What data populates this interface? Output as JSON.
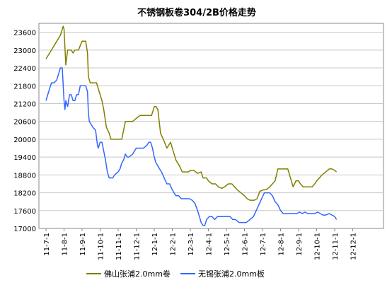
{
  "chart_data": {
    "type": "line",
    "title": "不锈钢板卷304/2B价格走势",
    "xlabel": "",
    "ylabel": "",
    "ylim": [
      17000,
      23900
    ],
    "y_ticks": [
      17000,
      17600,
      18200,
      18800,
      19400,
      20000,
      20600,
      21200,
      21800,
      22400,
      23000,
      23600
    ],
    "grid": true,
    "legend_position": "bottom",
    "categories": [
      "11-7-1",
      "11-8-1",
      "11-9-1",
      "11-10-1",
      "11-11-1",
      "11-12-1",
      "12-1-1",
      "12-2-1",
      "12-3-1",
      "12-4-1",
      "12-5-1",
      "12-6-1",
      "12-7-1",
      "12-8-1",
      "12-9-1",
      "12-10-1",
      "12-11-1",
      "12-12-1"
    ],
    "series": [
      {
        "name": "佛山张浦2.0mm卷",
        "color": "#808000",
        "points": [
          [
            0,
            22700
          ],
          [
            0.2,
            22900
          ],
          [
            0.4,
            23100
          ],
          [
            0.6,
            23300
          ],
          [
            0.8,
            23500
          ],
          [
            0.9,
            23700
          ],
          [
            0.95,
            23800
          ],
          [
            1.0,
            23700
          ],
          [
            1.1,
            22500
          ],
          [
            1.2,
            23000
          ],
          [
            1.4,
            23000
          ],
          [
            1.5,
            22900
          ],
          [
            1.6,
            23000
          ],
          [
            1.8,
            23000
          ],
          [
            2.0,
            23300
          ],
          [
            2.2,
            23300
          ],
          [
            2.3,
            22900
          ],
          [
            2.35,
            22100
          ],
          [
            2.45,
            21900
          ],
          [
            2.6,
            21900
          ],
          [
            2.8,
            21900
          ],
          [
            3.0,
            21500
          ],
          [
            3.1,
            21300
          ],
          [
            3.2,
            21000
          ],
          [
            3.35,
            20400
          ],
          [
            3.5,
            20200
          ],
          [
            3.6,
            20000
          ],
          [
            3.8,
            20000
          ],
          [
            4.0,
            20000
          ],
          [
            4.2,
            20000
          ],
          [
            4.4,
            20600
          ],
          [
            4.6,
            20600
          ],
          [
            4.8,
            20600
          ],
          [
            5.0,
            20700
          ],
          [
            5.2,
            20800
          ],
          [
            5.5,
            20800
          ],
          [
            5.7,
            20800
          ],
          [
            5.85,
            20800
          ],
          [
            6.0,
            21100
          ],
          [
            6.1,
            21100
          ],
          [
            6.2,
            21000
          ],
          [
            6.35,
            20200
          ],
          [
            6.5,
            20000
          ],
          [
            6.7,
            19700
          ],
          [
            6.9,
            19900
          ],
          [
            7.05,
            19600
          ],
          [
            7.2,
            19300
          ],
          [
            7.4,
            19100
          ],
          [
            7.55,
            18900
          ],
          [
            7.7,
            18900
          ],
          [
            7.9,
            18900
          ],
          [
            8.0,
            18950
          ],
          [
            8.2,
            18950
          ],
          [
            8.4,
            18850
          ],
          [
            8.6,
            18900
          ],
          [
            8.7,
            18700
          ],
          [
            8.9,
            18700
          ],
          [
            9.0,
            18600
          ],
          [
            9.2,
            18500
          ],
          [
            9.4,
            18500
          ],
          [
            9.55,
            18400
          ],
          [
            9.75,
            18350
          ],
          [
            9.9,
            18400
          ],
          [
            10.1,
            18500
          ],
          [
            10.3,
            18500
          ],
          [
            10.45,
            18400
          ],
          [
            10.6,
            18300
          ],
          [
            10.8,
            18200
          ],
          [
            11.0,
            18100
          ],
          [
            11.15,
            18000
          ],
          [
            11.3,
            17950
          ],
          [
            11.55,
            17950
          ],
          [
            11.7,
            18000
          ],
          [
            11.85,
            18250
          ],
          [
            12.05,
            18300
          ],
          [
            12.2,
            18300
          ],
          [
            12.4,
            18400
          ],
          [
            12.55,
            18500
          ],
          [
            12.7,
            18600
          ],
          [
            12.85,
            19000
          ],
          [
            13.0,
            19000
          ],
          [
            13.2,
            19000
          ],
          [
            13.4,
            19000
          ],
          [
            13.55,
            18700
          ],
          [
            13.7,
            18400
          ],
          [
            13.85,
            18600
          ],
          [
            14.0,
            18600
          ],
          [
            14.1,
            18500
          ],
          [
            14.25,
            18400
          ],
          [
            14.5,
            18400
          ],
          [
            14.75,
            18400
          ],
          [
            14.9,
            18500
          ],
          [
            15.0,
            18600
          ],
          [
            15.15,
            18700
          ],
          [
            15.3,
            18800
          ],
          [
            15.5,
            18900
          ],
          [
            15.7,
            19000
          ],
          [
            15.85,
            19000
          ],
          [
            16.0,
            18950
          ],
          [
            16.1,
            18900
          ]
        ]
      },
      {
        "name": "无锡张浦2.0mm板",
        "color": "#3366ff",
        "points": [
          [
            0,
            21300
          ],
          [
            0.1,
            21500
          ],
          [
            0.2,
            21700
          ],
          [
            0.3,
            21900
          ],
          [
            0.45,
            21900
          ],
          [
            0.6,
            22000
          ],
          [
            0.7,
            22200
          ],
          [
            0.8,
            22400
          ],
          [
            0.9,
            22400
          ],
          [
            1.0,
            21300
          ],
          [
            1.05,
            21000
          ],
          [
            1.1,
            21300
          ],
          [
            1.2,
            21100
          ],
          [
            1.3,
            21500
          ],
          [
            1.4,
            21500
          ],
          [
            1.5,
            21300
          ],
          [
            1.6,
            21300
          ],
          [
            1.7,
            21500
          ],
          [
            1.8,
            21500
          ],
          [
            1.9,
            21800
          ],
          [
            2.0,
            21800
          ],
          [
            2.1,
            21800
          ],
          [
            2.2,
            21800
          ],
          [
            2.3,
            21600
          ],
          [
            2.35,
            20900
          ],
          [
            2.4,
            20600
          ],
          [
            2.5,
            20500
          ],
          [
            2.6,
            20400
          ],
          [
            2.75,
            20300
          ],
          [
            2.85,
            19800
          ],
          [
            2.9,
            19700
          ],
          [
            3.0,
            19900
          ],
          [
            3.1,
            19900
          ],
          [
            3.2,
            19600
          ],
          [
            3.3,
            19300
          ],
          [
            3.4,
            18900
          ],
          [
            3.5,
            18700
          ],
          [
            3.6,
            18700
          ],
          [
            3.7,
            18700
          ],
          [
            3.8,
            18800
          ],
          [
            4.0,
            18900
          ],
          [
            4.1,
            19000
          ],
          [
            4.2,
            19200
          ],
          [
            4.3,
            19300
          ],
          [
            4.4,
            19500
          ],
          [
            4.5,
            19400
          ],
          [
            4.6,
            19400
          ],
          [
            4.8,
            19500
          ],
          [
            5.0,
            19700
          ],
          [
            5.2,
            19700
          ],
          [
            5.4,
            19700
          ],
          [
            5.6,
            19800
          ],
          [
            5.7,
            19900
          ],
          [
            5.8,
            19900
          ],
          [
            5.9,
            19700
          ],
          [
            6.0,
            19400
          ],
          [
            6.1,
            19200
          ],
          [
            6.2,
            19100
          ],
          [
            6.4,
            18900
          ],
          [
            6.55,
            18700
          ],
          [
            6.7,
            18500
          ],
          [
            6.85,
            18500
          ],
          [
            7.0,
            18300
          ],
          [
            7.1,
            18200
          ],
          [
            7.2,
            18100
          ],
          [
            7.35,
            18100
          ],
          [
            7.5,
            18000
          ],
          [
            7.65,
            18000
          ],
          [
            7.8,
            18000
          ],
          [
            7.95,
            18000
          ],
          [
            8.1,
            17950
          ],
          [
            8.25,
            17850
          ],
          [
            8.4,
            17600
          ],
          [
            8.5,
            17400
          ],
          [
            8.6,
            17200
          ],
          [
            8.7,
            17100
          ],
          [
            8.8,
            17100
          ],
          [
            8.9,
            17300
          ],
          [
            9.05,
            17400
          ],
          [
            9.2,
            17400
          ],
          [
            9.35,
            17300
          ],
          [
            9.5,
            17400
          ],
          [
            9.7,
            17400
          ],
          [
            9.85,
            17400
          ],
          [
            10.0,
            17400
          ],
          [
            10.2,
            17400
          ],
          [
            10.35,
            17300
          ],
          [
            10.5,
            17300
          ],
          [
            10.7,
            17200
          ],
          [
            10.9,
            17200
          ],
          [
            11.1,
            17200
          ],
          [
            11.3,
            17300
          ],
          [
            11.5,
            17400
          ],
          [
            11.65,
            17600
          ],
          [
            11.8,
            17800
          ],
          [
            11.95,
            18000
          ],
          [
            12.1,
            18200
          ],
          [
            12.25,
            18200
          ],
          [
            12.4,
            18200
          ],
          [
            12.55,
            18100
          ],
          [
            12.7,
            17900
          ],
          [
            12.85,
            17800
          ],
          [
            13.0,
            17600
          ],
          [
            13.15,
            17500
          ],
          [
            13.3,
            17500
          ],
          [
            13.5,
            17500
          ],
          [
            13.7,
            17500
          ],
          [
            13.9,
            17500
          ],
          [
            14.05,
            17550
          ],
          [
            14.2,
            17500
          ],
          [
            14.35,
            17550
          ],
          [
            14.5,
            17500
          ],
          [
            14.7,
            17500
          ],
          [
            14.9,
            17500
          ],
          [
            15.05,
            17550
          ],
          [
            15.2,
            17500
          ],
          [
            15.35,
            17450
          ],
          [
            15.5,
            17450
          ],
          [
            15.7,
            17500
          ],
          [
            15.85,
            17450
          ],
          [
            16.0,
            17400
          ],
          [
            16.1,
            17300
          ]
        ]
      }
    ]
  }
}
